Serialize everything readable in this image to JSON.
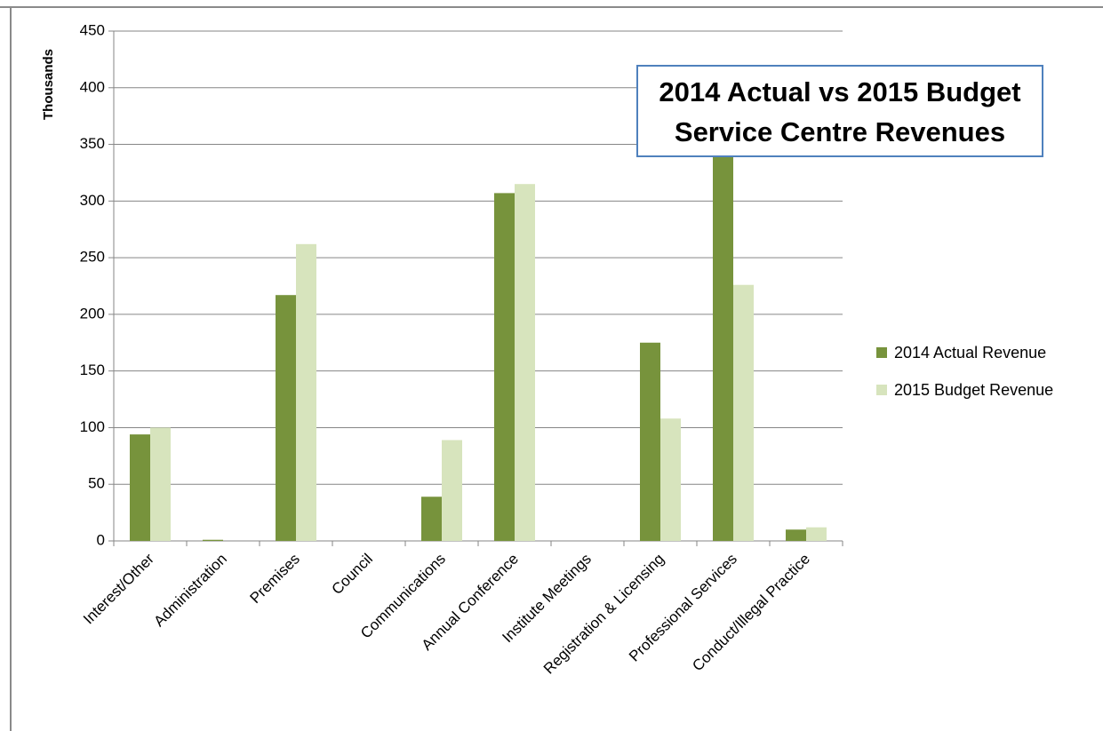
{
  "chart_data": {
    "type": "bar",
    "title_lines": [
      "2014 Actual vs 2015 Budget",
      "Service Centre Revenues"
    ],
    "xlabel": "",
    "ylabel": "Thousands",
    "ylim": [
      0,
      450
    ],
    "y_ticks": [
      0,
      50,
      100,
      150,
      200,
      250,
      300,
      350,
      400,
      450
    ],
    "grid": true,
    "legend_position": "right",
    "categories": [
      "Interest/Other",
      "Administration",
      "Premises",
      "Council",
      "Communications",
      "Annual Conference",
      "Institute Meetings",
      "Registration & Licensing",
      "Professional Services",
      "Conduct/Illegal Practice"
    ],
    "series": [
      {
        "name": "2014 Actual Revenue",
        "color": "#77933c",
        "values": [
          94,
          1,
          217,
          0,
          39,
          307,
          0,
          175,
          340,
          10
        ]
      },
      {
        "name": "2015 Budget Revenue",
        "color": "#d7e4bd",
        "values": [
          100,
          0,
          262,
          0,
          89,
          315,
          0,
          108,
          226,
          12
        ]
      }
    ]
  }
}
